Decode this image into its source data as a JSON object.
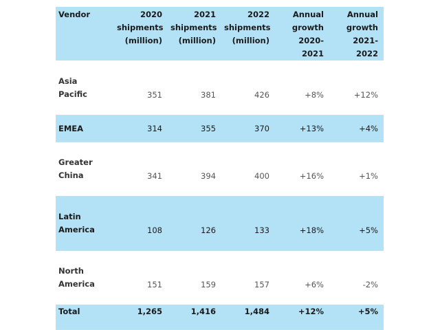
{
  "table": {
    "headers": {
      "vendor": "Vendor",
      "col2020": [
        "2020",
        "shipments",
        "(million)"
      ],
      "col2021": [
        "2021",
        "shipments",
        "(million)"
      ],
      "col2022": [
        "2022",
        "shipments",
        "(million)"
      ],
      "growth1": [
        "Annual",
        "growth",
        "2020-2021"
      ],
      "growth2": [
        "Annual",
        "growth",
        "2021-2022"
      ]
    },
    "rows": [
      {
        "vendor": [
          "Asia",
          "Pacific"
        ],
        "y2020": "351",
        "y2021": "381",
        "y2022": "426",
        "g1": "+8%",
        "g2": "+12%"
      },
      {
        "vendor": [
          "EMEA"
        ],
        "y2020": "314",
        "y2021": "355",
        "y2022": "370",
        "g1": "+13%",
        "g2": "+4%"
      },
      {
        "vendor": [
          "Greater",
          "China"
        ],
        "y2020": "341",
        "y2021": "394",
        "y2022": "400",
        "g1": "+16%",
        "g2": "+1%"
      },
      {
        "vendor": [
          "Latin",
          "America"
        ],
        "y2020": "108",
        "y2021": "126",
        "y2022": "133",
        "g1": "+18%",
        "g2": "+5%"
      },
      {
        "vendor": [
          "North",
          "America"
        ],
        "y2020": "151",
        "y2021": "159",
        "y2022": "157",
        "g1": "+6%",
        "g2": "-2%"
      }
    ],
    "total": {
      "vendor": "Total",
      "y2020": "1,265",
      "y2021": "1,416",
      "y2022": "1,484",
      "g1": "+12%",
      "g2": "+5%"
    }
  },
  "colors": {
    "header_bg": "#b3e2f7",
    "stripe_bg": "#b3e2f7",
    "row_bg": "#ffffff"
  }
}
